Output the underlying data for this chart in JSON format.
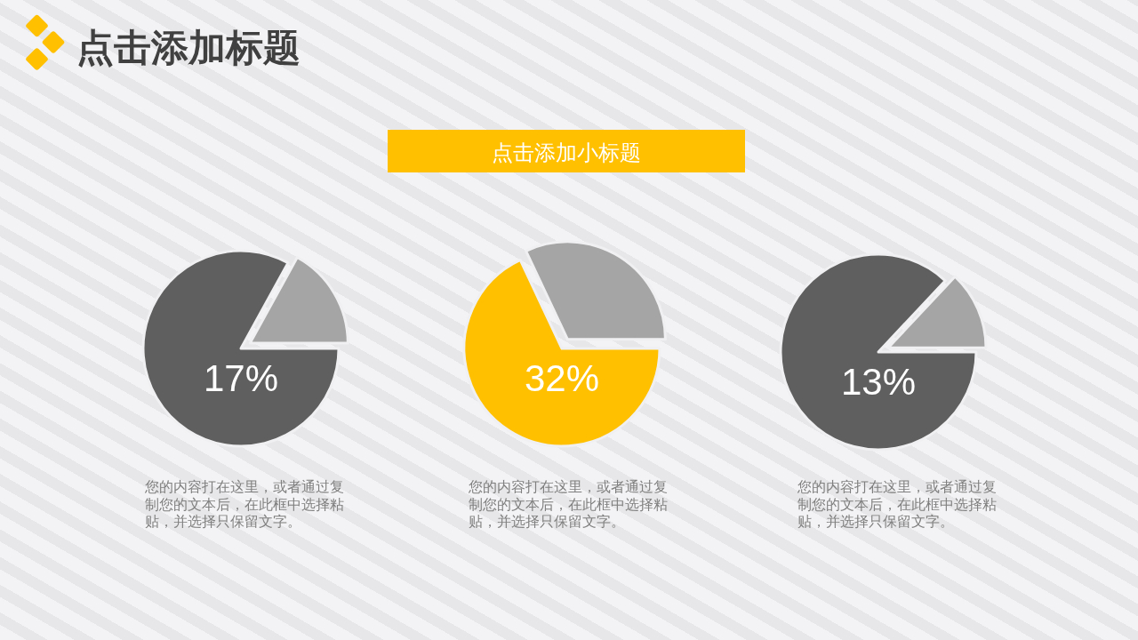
{
  "chart_data": [
    {
      "type": "other",
      "title": "点击添加标题",
      "subtitle": "点击添加小标题"
    },
    {
      "type": "pie",
      "categories": [
        null,
        null
      ],
      "values": [
        17,
        83
      ],
      "colors": [
        "#a5a5a5",
        "#5f5f5f"
      ],
      "annotations": [
        "17%",
        "您的内容打在这里，或者通过复制您的文本后，在此框中选择粘贴，并选择只保留文字。"
      ]
    },
    {
      "type": "pie",
      "categories": [
        null,
        null
      ],
      "values": [
        32,
        68
      ],
      "colors": [
        "#a5a5a5",
        "#ffc000"
      ],
      "annotations": [
        "32%",
        "您的内容打在这里，或者通过复制您的文本后，在此框中选择粘贴，并选择只保留文字。"
      ]
    },
    {
      "type": "pie",
      "categories": [
        null,
        null
      ],
      "values": [
        13,
        87
      ],
      "colors": [
        "#a5a5a5",
        "#5f5f5f"
      ],
      "annotations": [
        "13%",
        "您的内容打在这里，或者通过复制您的文本后，在此框中选择粘贴，并选择只保留文字。"
      ]
    }
  ]
}
